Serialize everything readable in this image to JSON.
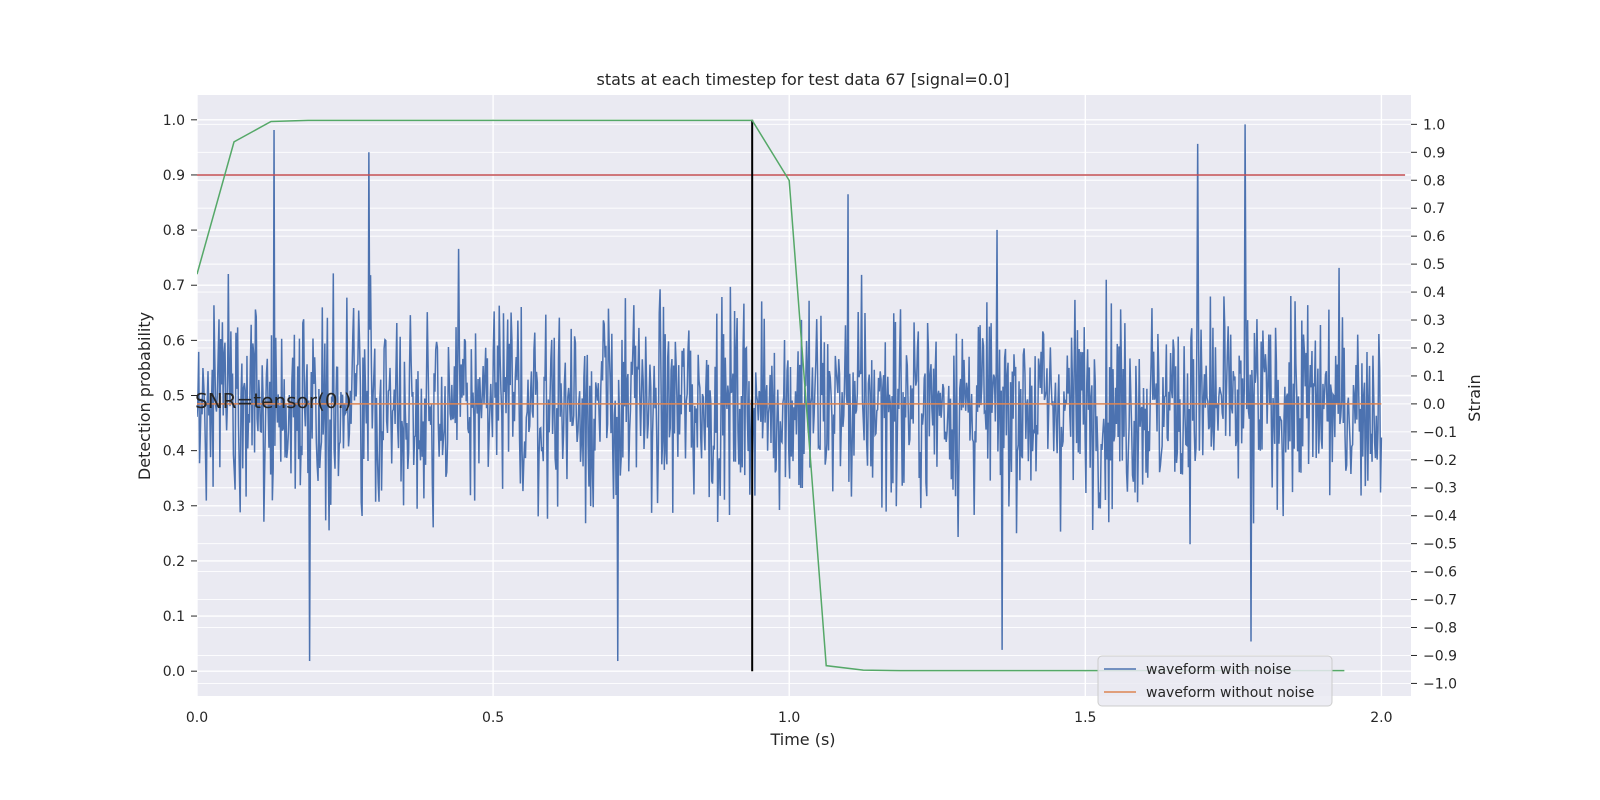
{
  "chart_data": {
    "type": "line",
    "title": "stats at each timestep for test data 67 [signal=0.0]",
    "xlabel": "Time (s)",
    "ylabel": "Detection probability",
    "y2label": "Strain",
    "xlim": [
      0.0,
      2.05
    ],
    "ylim": [
      -0.045,
      1.045
    ],
    "y2lim": [
      -1.045,
      1.105
    ],
    "x_ticks": [
      0.0,
      0.5,
      1.0,
      1.5,
      2.0
    ],
    "x_tick_labels": [
      "0.0",
      "0.5",
      "1.0",
      "1.5",
      "2.0"
    ],
    "y_ticks": [
      0.0,
      0.1,
      0.2,
      0.3,
      0.4,
      0.5,
      0.6,
      0.7,
      0.8,
      0.9,
      1.0
    ],
    "y_tick_labels": [
      "0.0",
      "0.1",
      "0.2",
      "0.3",
      "0.4",
      "0.5",
      "0.6",
      "0.7",
      "0.8",
      "0.9",
      "1.0"
    ],
    "y2_ticks": [
      -1.0,
      -0.9,
      -0.8,
      -0.7,
      -0.6,
      -0.5,
      -0.4,
      -0.3,
      -0.2,
      -0.1,
      0.0,
      0.1,
      0.2,
      0.3,
      0.4,
      0.5,
      0.6,
      0.7,
      0.8,
      0.9,
      1.0
    ],
    "y2_tick_labels": [
      "−1.0",
      "−0.9",
      "−0.8",
      "−0.7",
      "−0.6",
      "−0.5",
      "−0.4",
      "−0.3",
      "−0.2",
      "−0.1",
      "0.0",
      "0.1",
      "0.2",
      "0.3",
      "0.4",
      "0.5",
      "0.6",
      "0.7",
      "0.8",
      "0.9",
      "1.0"
    ],
    "grid": true,
    "background_color": "#eaeaf2",
    "legend_position": "lower-right",
    "series": [
      {
        "name": "waveform with noise",
        "axis": "right",
        "color": "#4c72b0",
        "style": "noisy-strain",
        "x_range": [
          0.0,
          2.0
        ],
        "value_range": [
          -0.92,
          1.0
        ],
        "spike_highlights": [
          {
            "x": 0.13,
            "y": 0.98
          },
          {
            "x": 0.29,
            "y": 0.9
          },
          {
            "x": 1.1,
            "y": 0.75
          },
          {
            "x": 1.69,
            "y": 0.93
          },
          {
            "x": 1.77,
            "y": 1.0
          },
          {
            "x": 0.19,
            "y": -0.92
          },
          {
            "x": 0.71,
            "y": -0.92
          },
          {
            "x": 1.36,
            "y": -0.88
          },
          {
            "x": 1.78,
            "y": -0.85
          }
        ]
      },
      {
        "name": "waveform without noise",
        "axis": "right",
        "color": "#dd8452",
        "x": [
          0.0,
          2.0
        ],
        "y": [
          0.0,
          0.0
        ]
      },
      {
        "name": "",
        "axis": "left",
        "color": "#55a868",
        "x": [
          0.0,
          0.0625,
          0.125,
          0.1875,
          0.25,
          0.3125,
          0.375,
          0.4375,
          0.5,
          0.5625,
          0.625,
          0.6875,
          0.75,
          0.8125,
          0.875,
          0.9375,
          1.0,
          1.0625,
          1.125,
          1.1875,
          1.25,
          1.3125,
          1.375,
          1.4375,
          1.5,
          1.5625,
          1.625,
          1.6875,
          1.75,
          1.8125,
          1.875,
          1.9375
        ],
        "y": [
          0.72,
          0.96,
          0.997,
          0.999,
          0.999,
          0.999,
          0.999,
          0.999,
          0.999,
          0.999,
          0.999,
          0.999,
          0.999,
          0.999,
          0.999,
          0.999,
          0.89,
          0.01,
          0.002,
          0.001,
          0.001,
          0.001,
          0.001,
          0.001,
          0.001,
          0.001,
          0.001,
          0.001,
          0.001,
          0.001,
          0.001,
          0.001
        ]
      }
    ],
    "reference_lines": [
      {
        "kind": "horizontal",
        "axis": "left",
        "y": 0.9,
        "color": "#c44e52"
      },
      {
        "kind": "vertical",
        "x": 0.9375,
        "y_from": 0.0,
        "y_to": 1.0,
        "color": "#000000"
      }
    ],
    "annotations": [
      {
        "text": "SNR=tensor(0.)",
        "x": 0.0,
        "y": 0.49
      }
    ]
  }
}
